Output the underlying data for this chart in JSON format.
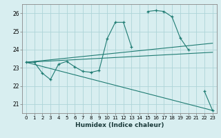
{
  "xlabel": "Humidex (Indice chaleur)",
  "bg_color": "#d8eef0",
  "grid_color": "#aed4d8",
  "line_color": "#1e7b72",
  "xlim": [
    -0.5,
    23.5
  ],
  "ylim": [
    20.5,
    26.5
  ],
  "xticks": [
    0,
    1,
    2,
    3,
    4,
    5,
    6,
    7,
    8,
    9,
    10,
    11,
    12,
    13,
    14,
    15,
    16,
    17,
    18,
    19,
    20,
    21,
    22,
    23
  ],
  "yticks": [
    21,
    22,
    23,
    24,
    25,
    26
  ],
  "main_x": [
    0,
    1,
    2,
    3,
    4,
    5,
    6,
    7,
    8,
    9,
    10,
    11,
    12,
    13,
    14,
    15,
    16,
    17,
    18,
    19,
    20,
    21,
    22,
    23
  ],
  "main_y": [
    23.3,
    23.3,
    22.7,
    22.35,
    23.2,
    23.35,
    23.05,
    22.8,
    22.75,
    22.85,
    24.6,
    25.5,
    25.5,
    24.15,
    null,
    26.1,
    26.15,
    26.1,
    25.8,
    24.65,
    24.0,
    null,
    21.7,
    20.65
  ],
  "trend1_x": [
    0,
    23
  ],
  "trend1_y": [
    23.3,
    24.35
  ],
  "trend2_x": [
    0,
    23
  ],
  "trend2_y": [
    23.3,
    23.85
  ],
  "trend3_x": [
    0,
    23
  ],
  "trend3_y": [
    23.3,
    20.65
  ]
}
